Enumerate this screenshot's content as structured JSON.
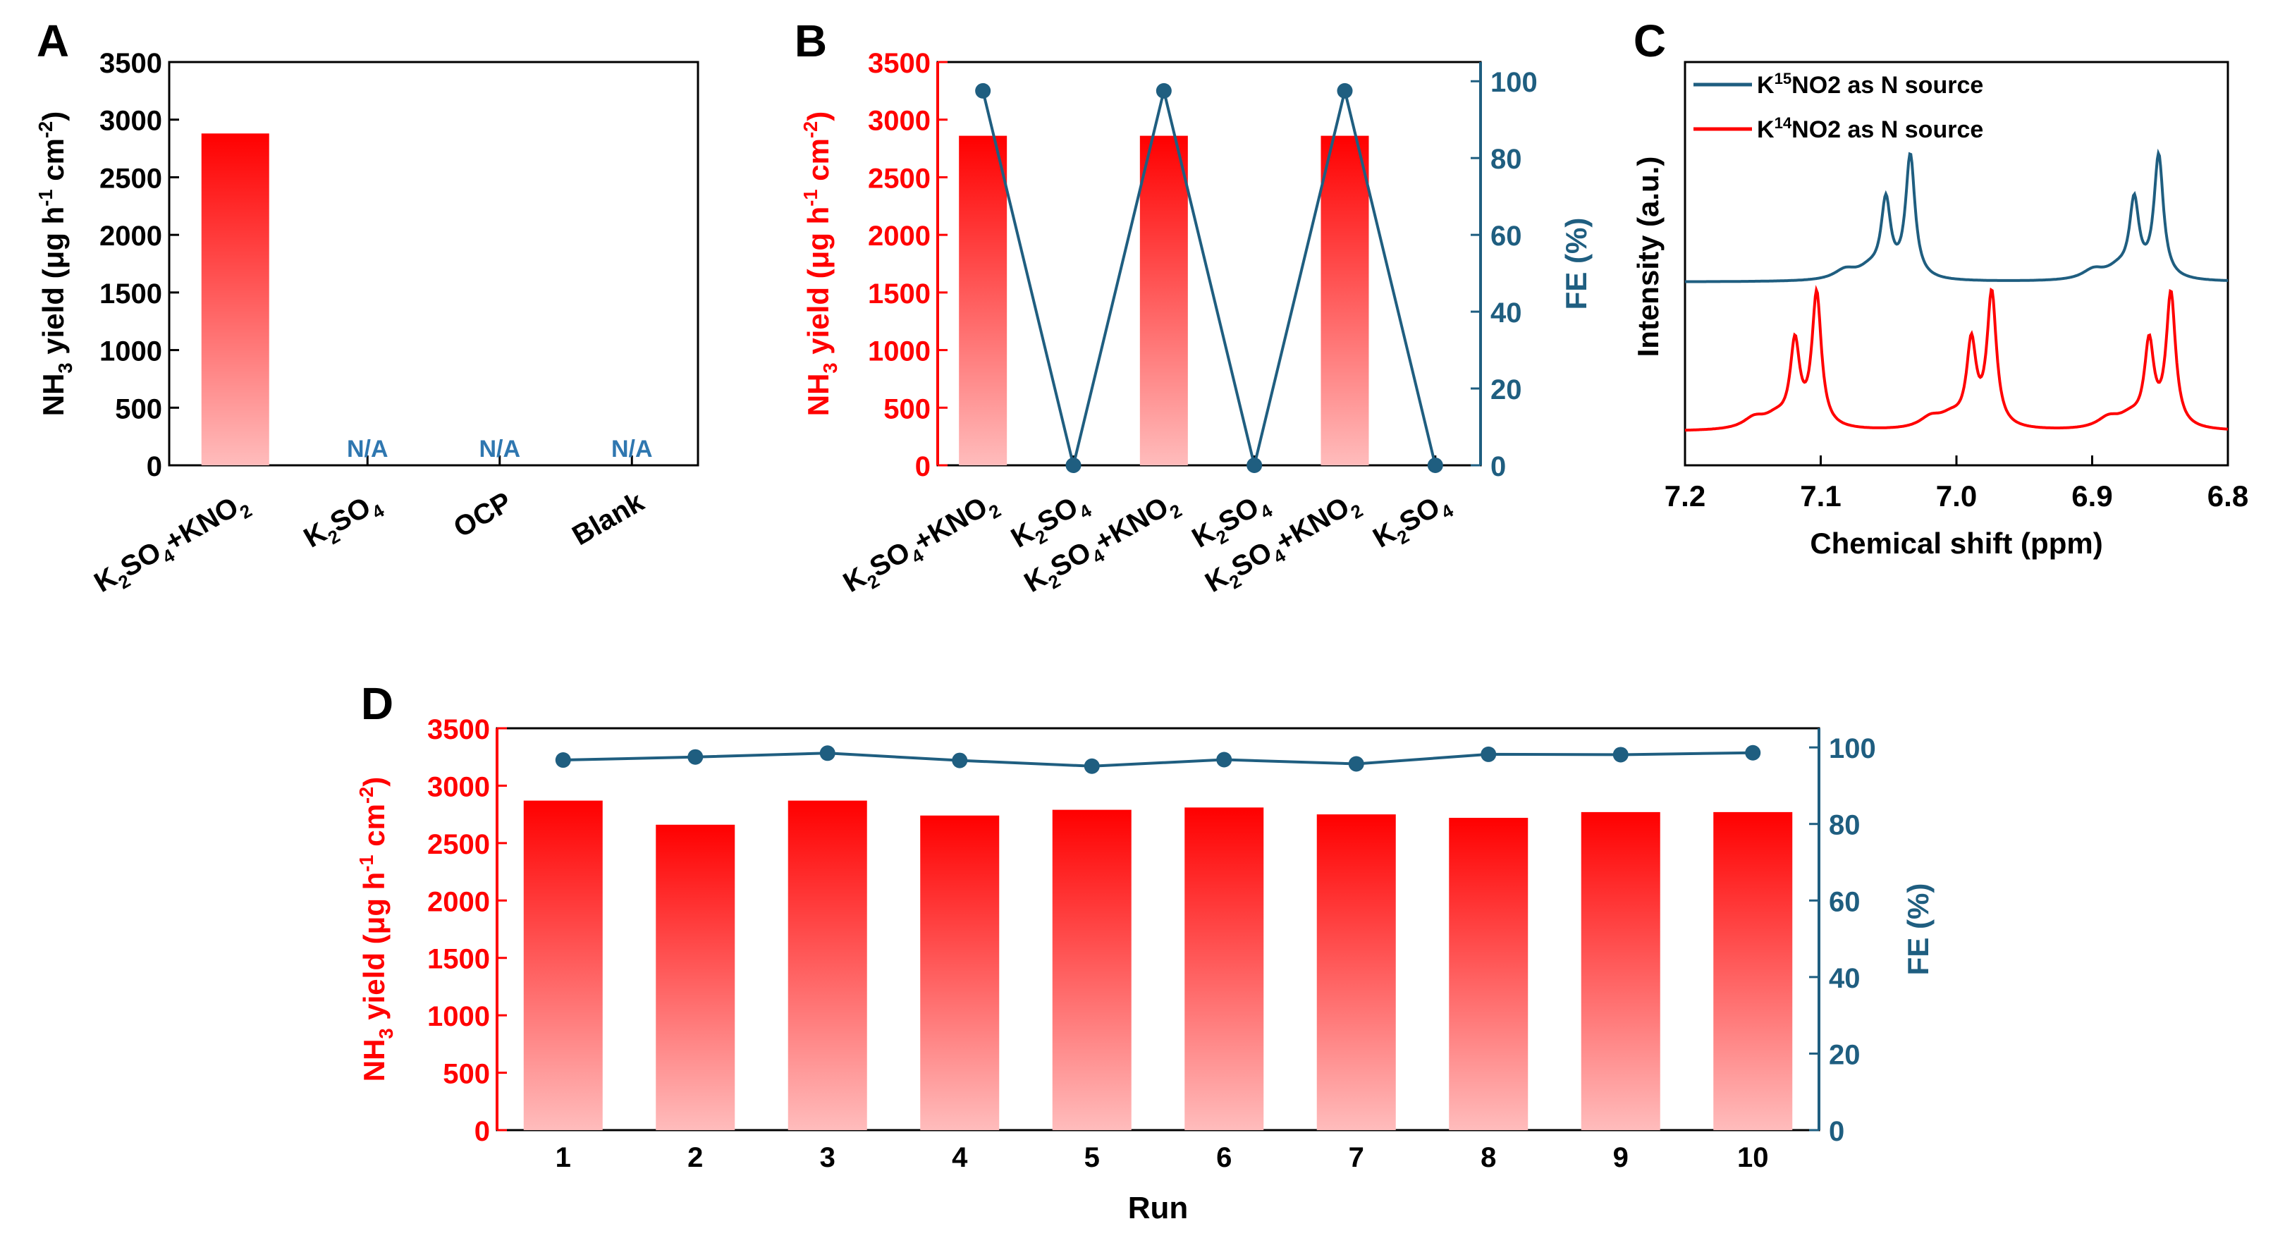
{
  "colors": {
    "red": "#ff0000",
    "red_light": "#ffbcbc",
    "blue": "#1f5e80",
    "na": "#2f77b0",
    "black": "#000000"
  },
  "chart_data": [
    {
      "panel": "A",
      "type": "bar",
      "ylabel": "NH3 yield (μg h-1 cm-2)",
      "ylim": [
        0,
        3500
      ],
      "yticks": [
        "0",
        "500",
        "1000",
        "1500",
        "2000",
        "2500",
        "3000",
        "3500"
      ],
      "categories": [
        "K2SO4+KNO2",
        "K2SO4",
        "OCP",
        "Blank"
      ],
      "values": [
        2880,
        null,
        null,
        null
      ],
      "annotations": [
        "N/A",
        "N/A",
        "N/A"
      ]
    },
    {
      "panel": "B",
      "type": "bar",
      "ylabel": "NH3 yield (μg h-1 cm-2)",
      "y2label": "FE (%)",
      "ylim": [
        0,
        3500
      ],
      "y2lim": [
        0,
        100
      ],
      "yticks": [
        "0",
        "500",
        "1000",
        "1500",
        "2000",
        "2500",
        "3000",
        "3500"
      ],
      "y2ticks": [
        "0",
        "20",
        "40",
        "60",
        "80",
        "100"
      ],
      "categories": [
        "K2SO4+KNO2",
        "K2SO4",
        "K2SO4+KNO2",
        "K2SO4",
        "K2SO4+KNO2",
        "K2SO4"
      ],
      "series": [
        {
          "name": "NH3 yield",
          "type": "bar",
          "values": [
            2860,
            null,
            2860,
            null,
            2860,
            null
          ]
        },
        {
          "name": "FE",
          "type": "line",
          "values": [
            97.5,
            0,
            97.5,
            0,
            97.5,
            0
          ]
        }
      ]
    },
    {
      "panel": "C",
      "type": "line",
      "xlabel": "Chemical shift (ppm)",
      "ylabel": "Intensity (a.u.)",
      "xlim": [
        7.2,
        6.8
      ],
      "xticks": [
        "7.2",
        "7.1",
        "7.0",
        "6.9",
        "6.8"
      ],
      "legend": [
        "K15NO2 as N source",
        "K14NO2 as N source"
      ],
      "legend_position": "top-left",
      "series": [
        {
          "name": "K15NO2 as N source",
          "peaks_ppm": [
            7.052,
            7.034,
            6.869,
            6.851
          ]
        },
        {
          "name": "K14NO2 as N source",
          "peaks_ppm": [
            7.119,
            7.103,
            6.989,
            6.974,
            6.858,
            6.842
          ]
        }
      ]
    },
    {
      "panel": "D",
      "type": "bar",
      "xlabel": "Run",
      "ylabel": "NH3 yield (μg h-1 cm-2)",
      "y2label": "FE (%)",
      "ylim": [
        0,
        3500
      ],
      "y2lim": [
        0,
        105
      ],
      "yticks": [
        "0",
        "500",
        "1000",
        "1500",
        "2000",
        "2500",
        "3000",
        "3500"
      ],
      "y2ticks": [
        "0",
        "20",
        "40",
        "60",
        "80",
        "100"
      ],
      "categories": [
        "1",
        "2",
        "3",
        "4",
        "5",
        "6",
        "7",
        "8",
        "9",
        "10"
      ],
      "series": [
        {
          "name": "NH3 yield",
          "type": "bar",
          "values": [
            2870,
            2660,
            2870,
            2740,
            2790,
            2810,
            2750,
            2720,
            2770,
            2770
          ]
        },
        {
          "name": "FE",
          "type": "line",
          "values": [
            96.7,
            97.5,
            98.5,
            96.6,
            95.1,
            96.8,
            95.7,
            98.2,
            98.1,
            98.6
          ]
        }
      ]
    }
  ]
}
